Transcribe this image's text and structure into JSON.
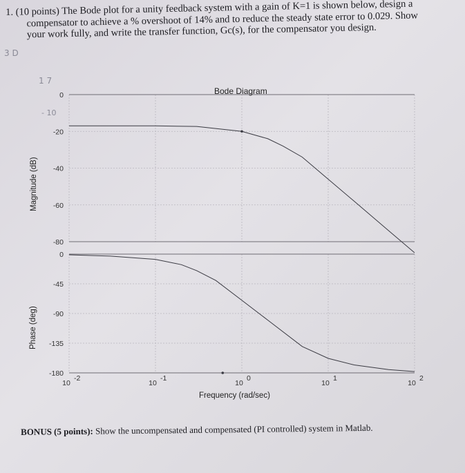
{
  "question": {
    "number": "1.",
    "points": "(10 points)",
    "line1": "1. (10 points) The Bode plot for a unity feedback system with a gain of K=1 is shown below, design a",
    "line2": "compensator to achieve a % overshoot of 14% and to reduce the steady state error to 0.029. Show",
    "line3": "your work fully, and write the transfer function, Gc(s), for the compensator you design."
  },
  "annotations": {
    "margin_note": "3 D",
    "note_17": "1 7",
    "note_minus10": "- 10"
  },
  "bonus": {
    "label": "BONUS (5 points):",
    "text": "Show the uncompensated and compensated (PI controlled) system in Matlab."
  },
  "chart_data": {
    "type": "line",
    "title": "Bode Diagram",
    "xlabel": "Frequency (rad/sec)",
    "x_scale": "log",
    "x_ticks": [
      "10^-2",
      "10^-1",
      "10^0",
      "10^1",
      "10^2"
    ],
    "x_tick_exponents": [
      -2,
      -1,
      0,
      1,
      2
    ],
    "xlim": [
      0.01,
      100
    ],
    "magnitude": {
      "ylabel": "Magnitude (dB)",
      "ylim": [
        -80,
        0
      ],
      "y_ticks": [
        0,
        -20,
        -40,
        -60,
        -80
      ],
      "x": [
        0.01,
        0.1,
        0.3,
        1,
        2,
        3,
        5,
        10,
        20,
        50,
        100
      ],
      "values": [
        -17,
        -17,
        -17.3,
        -20,
        -24,
        -28,
        -34,
        -46,
        -58,
        -74,
        -86
      ]
    },
    "phase": {
      "ylabel": "Phase (deg)",
      "ylim": [
        -180,
        0
      ],
      "y_ticks": [
        0,
        -45,
        -90,
        -135,
        -180
      ],
      "x": [
        0.01,
        0.03,
        0.1,
        0.2,
        0.3,
        0.5,
        1,
        2,
        5,
        10,
        20,
        50,
        100
      ],
      "values": [
        -1,
        -3,
        -8,
        -16,
        -25,
        -40,
        -70,
        -100,
        -140,
        -158,
        -168,
        -175,
        -178
      ]
    },
    "grid": true
  },
  "colors": {
    "trace": "#3a3a42",
    "grid": "#b9b6be",
    "axis": "#6f6c74"
  }
}
